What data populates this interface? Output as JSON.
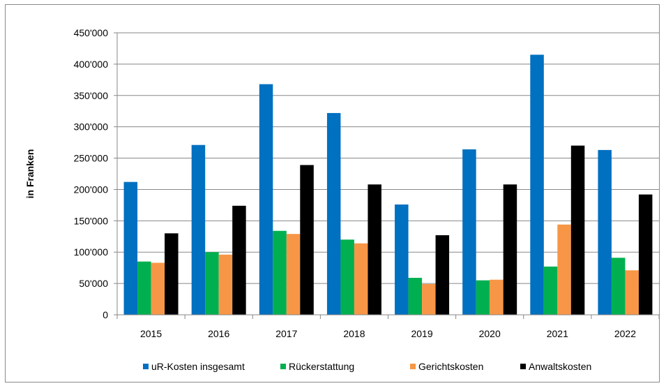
{
  "chart_data": {
    "type": "bar",
    "categories": [
      "2015",
      "2016",
      "2017",
      "2018",
      "2019",
      "2020",
      "2021",
      "2022"
    ],
    "series": [
      {
        "name": "uR-Kosten insgesamt",
        "color": "#0070C0",
        "values": [
          212000,
          271000,
          368000,
          322000,
          176000,
          264000,
          415000,
          263000
        ]
      },
      {
        "name": "Rückerstattung",
        "color": "#00B050",
        "values": [
          85000,
          100000,
          134000,
          120000,
          59000,
          55000,
          77000,
          91000
        ]
      },
      {
        "name": "Gerichtskosten",
        "color": "#F79646",
        "values": [
          83000,
          96000,
          129000,
          114000,
          49000,
          56000,
          144000,
          71000
        ]
      },
      {
        "name": "Anwaltskosten",
        "color": "#000000",
        "values": [
          130000,
          174000,
          239000,
          208000,
          127000,
          208000,
          270000,
          192000
        ]
      }
    ],
    "ylabel": "in Franken",
    "xlabel": "",
    "title": "",
    "ylim": [
      0,
      450000
    ],
    "yticks": [
      0,
      50000,
      100000,
      150000,
      200000,
      250000,
      300000,
      350000,
      400000,
      450000
    ],
    "ytick_labels": [
      "0",
      "50'000",
      "100'000",
      "150'000",
      "200'000",
      "250'000",
      "300'000",
      "350'000",
      "400'000",
      "450'000"
    ],
    "grid": "horizontal",
    "legend": "bottom"
  }
}
